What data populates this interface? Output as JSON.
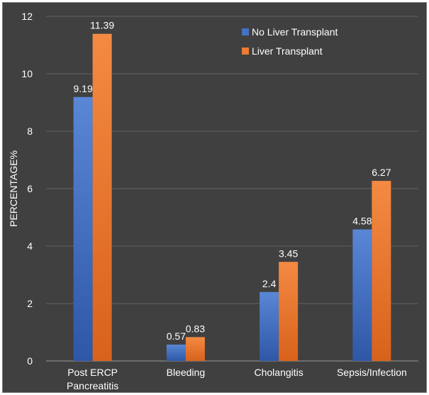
{
  "chart_data": {
    "type": "bar",
    "title": "",
    "xlabel": "",
    "ylabel": "PERCENTAGE%",
    "ylim": [
      0,
      12
    ],
    "yticks": [
      0,
      2,
      4,
      6,
      8,
      10,
      12
    ],
    "categories": [
      "Post ERCP Pancreatitis",
      "Bleeding",
      "Cholangitis",
      "Sepsis/Infection"
    ],
    "category_lines": [
      [
        "Post ERCP",
        "Pancreatitis"
      ],
      [
        "Bleeding"
      ],
      [
        "Cholangitis"
      ],
      [
        "Sepsis/Infection"
      ]
    ],
    "series": [
      {
        "name": "No Liver Transplant",
        "color": "#4472c4",
        "values": [
          9.19,
          0.57,
          2.4,
          4.58
        ],
        "labels": [
          "9.19",
          "0.57",
          "2.4",
          "4.58"
        ]
      },
      {
        "name": "Liver Transplant",
        "color": "#ed7d31",
        "values": [
          11.39,
          0.83,
          3.45,
          6.27
        ],
        "labels": [
          "11.39",
          "0.83",
          "3.45",
          "6.27"
        ]
      }
    ],
    "grid": true,
    "legend_position": "top-right"
  }
}
